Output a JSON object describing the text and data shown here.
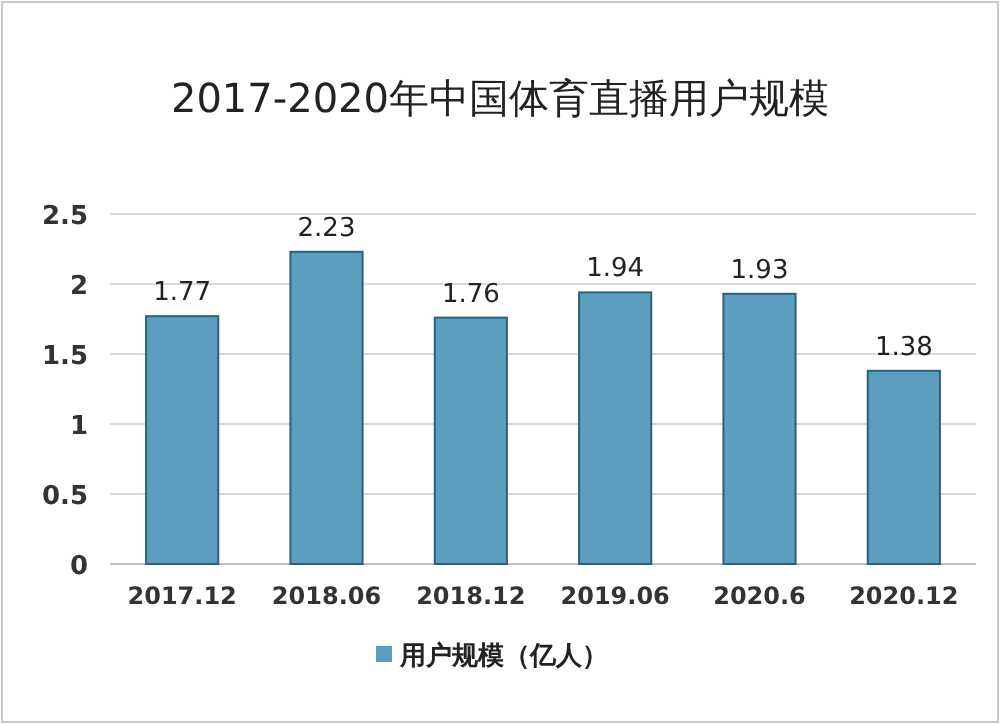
{
  "chart_data": {
    "type": "bar",
    "title": "2017-2020年中国体育直播用户规模",
    "categories": [
      "2017.12",
      "2018.06",
      "2018.12",
      "2019.06",
      "2020.6",
      "2020.12"
    ],
    "series": [
      {
        "name": "用户规模（亿人）",
        "color": "#5b9ec0",
        "values": [
          1.77,
          2.23,
          1.76,
          1.94,
          1.93,
          1.38
        ]
      }
    ],
    "ylim": [
      0,
      2.5
    ],
    "yticks": [
      0,
      0.5,
      1,
      1.5,
      2,
      2.5
    ],
    "grid": "y",
    "data_labels": true,
    "legend": "bottom"
  }
}
